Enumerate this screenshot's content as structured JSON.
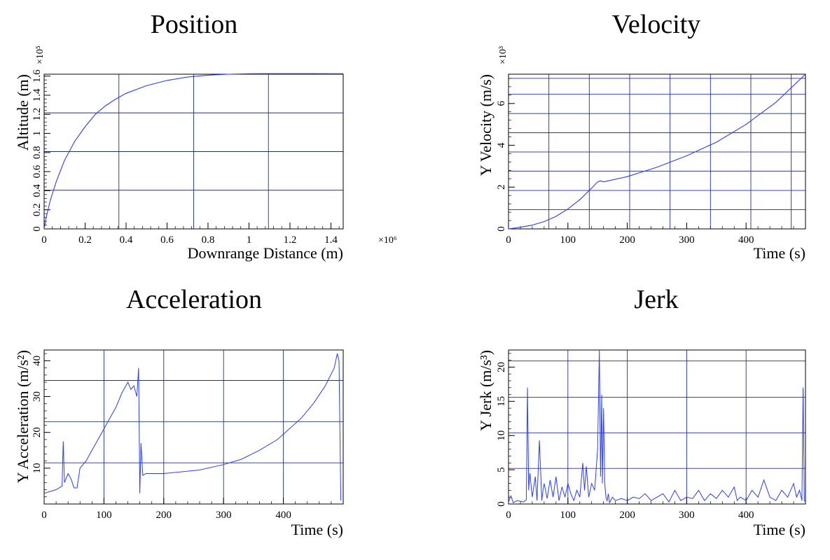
{
  "colors": {
    "series": "#2b3dff",
    "grid": "#1f2d9a",
    "axis": "#000000"
  },
  "chart_data": [
    {
      "id": "position",
      "type": "line",
      "title": "Position",
      "xlabel": "Downrange Distance (m)",
      "ylabel": "Altitude (m)",
      "xlim": [
        0,
        1.46
      ],
      "ylim": [
        0,
        1.62
      ],
      "x_multiplier": "×10⁶",
      "y_multiplier": "×10⁵",
      "xticks": [
        0,
        0.2,
        0.4,
        0.6,
        0.8,
        1,
        1.2,
        1.4
      ],
      "xtick_labels": [
        "0",
        "0.2",
        "0.4",
        "0.6",
        "0.8",
        "1",
        "1.2",
        "1.4"
      ],
      "yticks": [
        0,
        0.2,
        0.4,
        0.6,
        0.8,
        1,
        1.2,
        1.4,
        1.6
      ],
      "ytick_labels": [
        "0",
        "0.2",
        "0.4",
        "0.6",
        "0.8",
        "1",
        "1.2",
        "1.4",
        "1.6"
      ],
      "xgrid": [
        0.365,
        0.73,
        1.095
      ],
      "ygrid": [
        0.405,
        0.81,
        1.215
      ],
      "x": [
        0,
        0.01,
        0.03,
        0.06,
        0.1,
        0.15,
        0.2,
        0.25,
        0.3,
        0.35,
        0.4,
        0.5,
        0.6,
        0.7,
        0.8,
        0.9,
        1.0,
        1.1,
        1.2,
        1.3,
        1.46
      ],
      "y": [
        0,
        0.12,
        0.3,
        0.5,
        0.72,
        0.92,
        1.07,
        1.2,
        1.29,
        1.36,
        1.42,
        1.5,
        1.555,
        1.59,
        1.61,
        1.62,
        1.625,
        1.626,
        1.626,
        1.626,
        1.625
      ]
    },
    {
      "id": "velocity",
      "type": "line",
      "title": "Velocity",
      "xlabel": "Time (s)",
      "ylabel": "Y Velocity (m/s)",
      "xlim": [
        0,
        500
      ],
      "ylim": [
        0,
        7.4
      ],
      "y_multiplier": "×10³",
      "xticks": [
        0,
        100,
        200,
        300,
        400
      ],
      "xtick_labels": [
        "0",
        "100",
        "200",
        "300",
        "400"
      ],
      "yticks": [
        0,
        2,
        4,
        6
      ],
      "ytick_labels": [
        "0",
        "2",
        "4",
        "6"
      ],
      "xgrid": [
        68,
        136,
        204,
        272,
        340,
        408,
        476
      ],
      "ygrid": [
        0.92,
        1.84,
        2.76,
        3.68,
        4.6,
        5.52,
        6.44,
        7.2
      ],
      "x": [
        0,
        20,
        40,
        60,
        80,
        100,
        120,
        140,
        150,
        155,
        160,
        200,
        250,
        300,
        350,
        400,
        450,
        500
      ],
      "y": [
        0,
        0.08,
        0.18,
        0.35,
        0.6,
        0.95,
        1.4,
        1.95,
        2.25,
        2.3,
        2.25,
        2.5,
        2.95,
        3.5,
        4.15,
        5.0,
        6.05,
        7.4
      ]
    },
    {
      "id": "acceleration",
      "type": "line",
      "title": "Acceleration",
      "xlabel": "Time (s)",
      "ylabel": "Y Acceleration (m/s²)",
      "xlim": [
        0,
        500
      ],
      "ylim": [
        0,
        43
      ],
      "xticks": [
        0,
        100,
        200,
        300,
        400
      ],
      "xtick_labels": [
        "0",
        "100",
        "200",
        "300",
        "400"
      ],
      "yticks": [
        10,
        20,
        30,
        40
      ],
      "ytick_labels": [
        "10",
        "20",
        "30",
        "40"
      ],
      "xgrid": [
        100,
        200,
        300,
        400
      ],
      "ygrid": [
        11.5,
        23,
        34.5
      ],
      "x": [
        0,
        10,
        20,
        30,
        32,
        34,
        40,
        45,
        50,
        55,
        60,
        70,
        80,
        90,
        100,
        110,
        120,
        130,
        140,
        145,
        150,
        155,
        158,
        160,
        162,
        165,
        170,
        180,
        200,
        230,
        260,
        300,
        330,
        360,
        390,
        410,
        430,
        450,
        470,
        485,
        490,
        493,
        496
      ],
      "y": [
        3,
        3.5,
        4,
        5,
        17.5,
        6,
        8.5,
        7,
        4.5,
        4.5,
        10,
        12,
        15,
        18,
        21,
        24,
        27,
        31,
        34,
        32,
        33,
        30,
        38,
        3,
        17,
        8,
        8.5,
        8.5,
        8.5,
        9,
        9.5,
        11,
        12.5,
        15,
        18,
        21,
        24,
        28,
        33,
        38,
        42,
        40,
        1
      ]
    },
    {
      "id": "jerk",
      "type": "line",
      "title": "Jerk",
      "xlabel": "Time (s)",
      "ylabel": "Y Jerk (m/s³)",
      "xlim": [
        0,
        500
      ],
      "ylim": [
        0,
        22.5
      ],
      "xticks": [
        0,
        100,
        200,
        300,
        400
      ],
      "xtick_labels": [
        "0",
        "100",
        "200",
        "300",
        "400"
      ],
      "yticks": [
        0,
        5,
        10,
        15,
        20
      ],
      "ytick_labels": [
        "0",
        "5",
        "10",
        "15",
        "20"
      ],
      "xgrid": [
        100,
        200,
        300,
        400
      ],
      "ygrid": [
        5.2,
        10.4,
        15.6,
        20.9
      ],
      "x": [
        0,
        4,
        8,
        15,
        25,
        30,
        32,
        34,
        36,
        40,
        45,
        48,
        52,
        56,
        58,
        60,
        65,
        70,
        75,
        80,
        85,
        90,
        95,
        100,
        105,
        110,
        115,
        120,
        125,
        128,
        131,
        135,
        140,
        145,
        150,
        153,
        155,
        157,
        158,
        160,
        162,
        164,
        166,
        168,
        170,
        175,
        180,
        190,
        200,
        210,
        220,
        230,
        240,
        250,
        260,
        270,
        280,
        290,
        300,
        310,
        320,
        330,
        340,
        350,
        360,
        370,
        380,
        385,
        390,
        400,
        410,
        420,
        430,
        440,
        450,
        460,
        470,
        480,
        485,
        490,
        494,
        496,
        498,
        500
      ],
      "y": [
        0.3,
        1.2,
        0.2,
        0.5,
        0.3,
        0.6,
        17,
        2,
        4.5,
        1,
        4,
        0.5,
        9.3,
        0.5,
        2,
        3,
        0.8,
        3.5,
        1,
        4,
        0.5,
        2.5,
        1,
        3,
        1.5,
        0.5,
        2,
        1,
        6,
        2,
        5.5,
        1,
        3,
        2,
        8,
        22.5,
        4,
        16,
        3,
        14,
        3,
        1,
        0.5,
        1.5,
        0.2,
        1,
        0.5,
        0.8,
        0.5,
        1,
        0.8,
        1.5,
        0.5,
        1,
        1.5,
        0.3,
        2,
        0.5,
        1,
        0.8,
        2,
        0.5,
        1.5,
        0.8,
        2,
        1,
        2.5,
        0.5,
        1,
        0.5,
        2,
        1,
        3.5,
        1,
        0.5,
        2,
        1,
        3,
        1,
        2,
        0.5,
        17,
        0.5,
        0.3
      ]
    }
  ]
}
